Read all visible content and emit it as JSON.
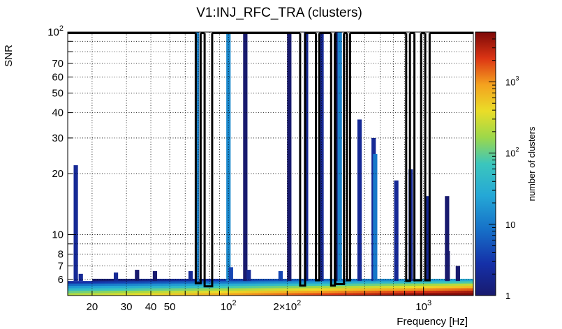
{
  "chart_data": {
    "type": "heatmap",
    "title": "V1:INJ_RFC_TRA (clusters)",
    "xlabel": "Frequency [Hz]",
    "ylabel": "SNR",
    "colorbar_label": "number of clusters",
    "x_scale": "log",
    "y_scale": "log",
    "z_scale": "log",
    "xlim": [
      15,
      1800
    ],
    "ylim": [
      5,
      100
    ],
    "zlim": [
      1,
      5000
    ],
    "grid": true,
    "x_ticks": [
      {
        "v": 20,
        "label": "20"
      },
      {
        "v": 30,
        "label": "30"
      },
      {
        "v": 40,
        "label": "40"
      },
      {
        "v": 50,
        "label": "50"
      },
      {
        "v": 100,
        "base": "10",
        "exp": "2"
      },
      {
        "v": 200,
        "base": "2×10",
        "exp": "2"
      },
      {
        "v": 1000,
        "base": "10",
        "exp": "3"
      }
    ],
    "y_ticks": [
      {
        "v": 6,
        "label": "6"
      },
      {
        "v": 7,
        "label": "7"
      },
      {
        "v": 8,
        "label": "8"
      },
      {
        "v": 10,
        "label": "10"
      },
      {
        "v": 20,
        "label": "20"
      },
      {
        "v": 30,
        "label": "30"
      },
      {
        "v": 40,
        "label": "40"
      },
      {
        "v": 50,
        "label": "50"
      },
      {
        "v": 60,
        "label": "60"
      },
      {
        "v": 70,
        "label": "70"
      },
      {
        "v": 100,
        "base": "10",
        "exp": "2"
      }
    ],
    "z_ticks": [
      {
        "v": 1,
        "label": "1"
      },
      {
        "v": 10,
        "label": "10"
      },
      {
        "v": 100,
        "base": "10",
        "exp": "2"
      },
      {
        "v": 1000,
        "base": "10",
        "exp": "3"
      }
    ],
    "background_floor": [
      {
        "snr": 5.0,
        "count": 500
      },
      {
        "snr": 5.15,
        "count": 250
      },
      {
        "snr": 5.3,
        "count": 110
      },
      {
        "snr": 5.45,
        "count": 45
      },
      {
        "snr": 5.6,
        "count": 18
      },
      {
        "snr": 5.75,
        "count": 6
      },
      {
        "snr": 5.9,
        "count": 2
      }
    ],
    "columns": [
      {
        "f": 16.5,
        "max_snr": 22.0,
        "count": 2
      },
      {
        "f": 17.5,
        "max_snr": 6.4,
        "count": 2
      },
      {
        "f": 26.5,
        "max_snr": 6.5,
        "count": 2
      },
      {
        "f": 34.0,
        "max_snr": 6.7,
        "count": 1
      },
      {
        "f": 42.0,
        "max_snr": 6.6,
        "count": 1
      },
      {
        "f": 64.0,
        "max_snr": 6.6,
        "count": 2
      },
      {
        "f": 69.0,
        "max_snr": 100,
        "count": 12
      },
      {
        "f": 100.0,
        "max_snr": 100,
        "count": 14
      },
      {
        "f": 103.0,
        "max_snr": 6.9,
        "count": 4
      },
      {
        "f": 122.0,
        "max_snr": 100,
        "count": 1
      },
      {
        "f": 127.0,
        "max_snr": 6.7,
        "count": 2
      },
      {
        "f": 185.0,
        "max_snr": 6.6,
        "count": 4
      },
      {
        "f": 205.0,
        "max_snr": 100,
        "count": 1
      },
      {
        "f": 250.0,
        "max_snr": 100,
        "count": 2
      },
      {
        "f": 300.0,
        "max_snr": 100,
        "count": 2
      },
      {
        "f": 360.0,
        "max_snr": 100,
        "count": 1
      },
      {
        "f": 372.0,
        "max_snr": 100,
        "count": 12
      },
      {
        "f": 470.0,
        "max_snr": 37.0,
        "count": 2
      },
      {
        "f": 555.0,
        "max_snr": 30.0,
        "count": 2
      },
      {
        "f": 565.0,
        "max_snr": 25.0,
        "count": 10
      },
      {
        "f": 725.0,
        "max_snr": 18.5,
        "count": 2
      },
      {
        "f": 860.0,
        "max_snr": 21.0,
        "count": 2
      },
      {
        "f": 1040.0,
        "max_snr": 15.5,
        "count": 2
      },
      {
        "f": 1320.0,
        "max_snr": 15.5,
        "count": 1
      },
      {
        "f": 1330.0,
        "max_snr": 8.3,
        "count": 1
      },
      {
        "f": 1500.0,
        "max_snr": 7.0,
        "count": 1
      }
    ],
    "outlines": [
      {
        "f1": 68.0,
        "f2": 72.0,
        "snr_low": 5.75
      },
      {
        "f1": 75.5,
        "f2": 82.5,
        "snr_low": 5.55
      },
      {
        "f1": 233.0,
        "f2": 247.0,
        "snr_low": 5.6
      },
      {
        "f1": 281.0,
        "f2": 292.0,
        "snr_low": 5.95
      },
      {
        "f1": 336.0,
        "f2": 351.0,
        "snr_low": 5.6
      },
      {
        "f1": 353.0,
        "f2": 391.0,
        "snr_low": 5.7
      },
      {
        "f1": 405.0,
        "f2": 420.0,
        "snr_low": 5.95
      },
      {
        "f1": 815.0,
        "f2": 852.0,
        "snr_low": 5.9
      },
      {
        "f1": 898.0,
        "f2": 972.0,
        "snr_low": 5.95
      },
      {
        "f1": 1020.0,
        "f2": 1075.0,
        "snr_low": 5.95
      }
    ]
  }
}
